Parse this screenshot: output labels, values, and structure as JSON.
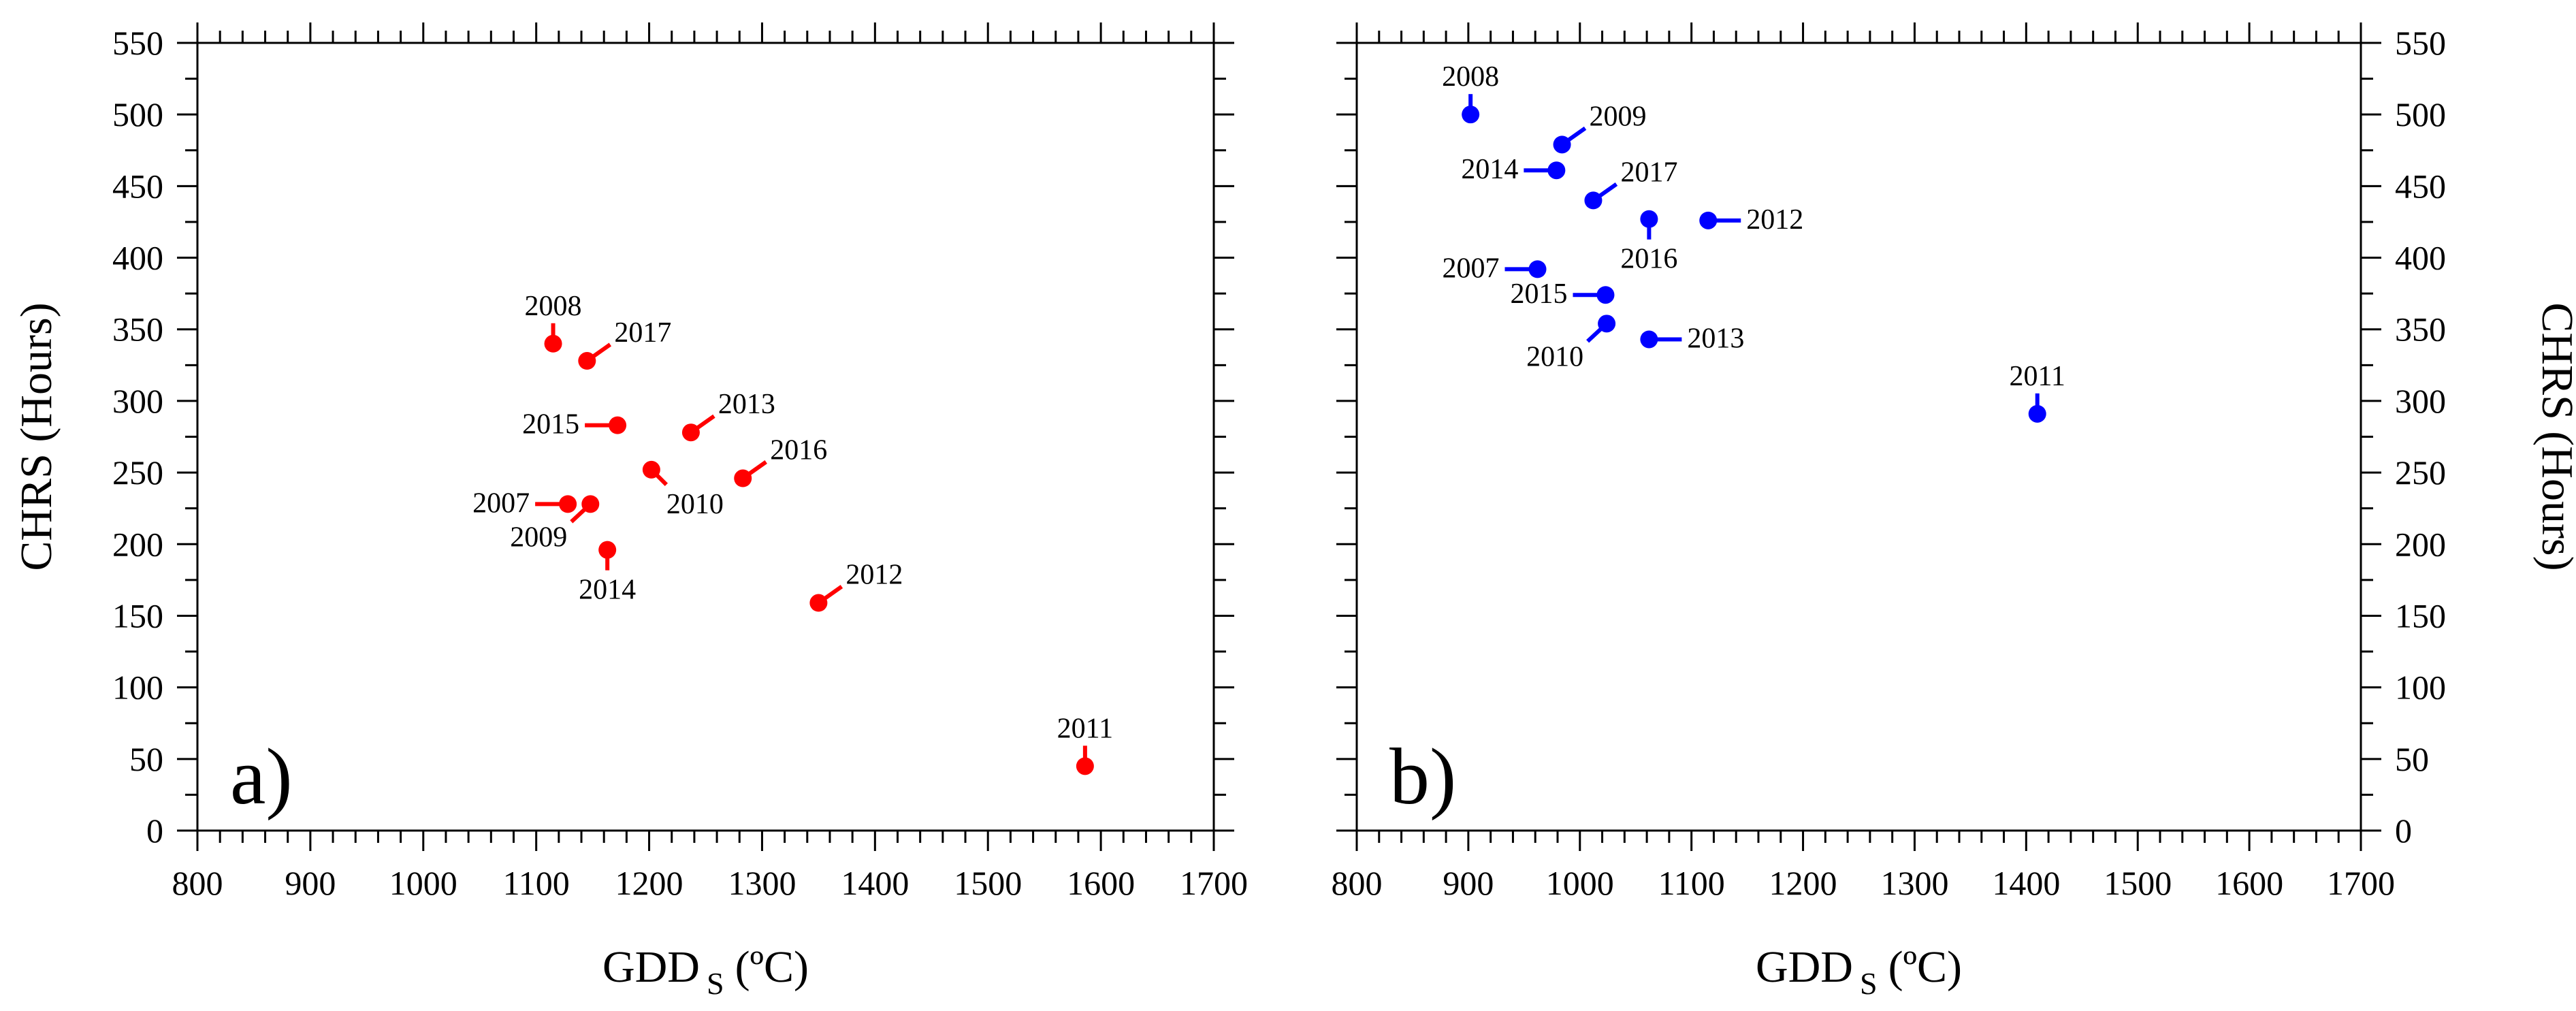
{
  "chart_data": [
    {
      "type": "scatter",
      "panel_label": "a)",
      "color": "#ff0000",
      "xlabel_main": "GDD",
      "xlabel_sub": "S",
      "xlabel_unit": "(ºC)",
      "ylabel": "CHRS (Hours)",
      "ylabel_side": "left",
      "xlim": [
        800,
        1700
      ],
      "ylim": [
        0,
        550
      ],
      "xticks": [
        800,
        900,
        1000,
        1100,
        1200,
        1300,
        1400,
        1500,
        1600,
        1700
      ],
      "yticks": [
        0,
        50,
        100,
        150,
        200,
        250,
        300,
        350,
        400,
        450,
        500,
        550
      ],
      "points": [
        {
          "year": "2007",
          "x": 1128,
          "y": 228,
          "label_pos": "left"
        },
        {
          "year": "2008",
          "x": 1115,
          "y": 340,
          "label_pos": "top"
        },
        {
          "year": "2009",
          "x": 1148,
          "y": 228,
          "label_pos": "bottom-left"
        },
        {
          "year": "2010",
          "x": 1202,
          "y": 252,
          "label_pos": "bottom-right"
        },
        {
          "year": "2011",
          "x": 1586,
          "y": 45,
          "label_pos": "top"
        },
        {
          "year": "2012",
          "x": 1350,
          "y": 159,
          "label_pos": "top-right"
        },
        {
          "year": "2013",
          "x": 1237,
          "y": 278,
          "label_pos": "top-right"
        },
        {
          "year": "2014",
          "x": 1163,
          "y": 196,
          "label_pos": "bottom"
        },
        {
          "year": "2015",
          "x": 1172,
          "y": 283,
          "label_pos": "left"
        },
        {
          "year": "2016",
          "x": 1283,
          "y": 246,
          "label_pos": "top-right"
        },
        {
          "year": "2017",
          "x": 1145,
          "y": 328,
          "label_pos": "top-right"
        }
      ]
    },
    {
      "type": "scatter",
      "panel_label": "b)",
      "color": "#0000ff",
      "xlabel_main": "GDD",
      "xlabel_sub": "S",
      "xlabel_unit": "(ºC)",
      "ylabel": "CHRS (Hours)",
      "ylabel_side": "right",
      "xlim": [
        800,
        1700
      ],
      "ylim": [
        0,
        550
      ],
      "xticks": [
        800,
        900,
        1000,
        1100,
        1200,
        1300,
        1400,
        1500,
        1600,
        1700
      ],
      "yticks": [
        0,
        50,
        100,
        150,
        200,
        250,
        300,
        350,
        400,
        450,
        500,
        550
      ],
      "points": [
        {
          "year": "2007",
          "x": 962,
          "y": 392,
          "label_pos": "left"
        },
        {
          "year": "2008",
          "x": 902,
          "y": 500,
          "label_pos": "top"
        },
        {
          "year": "2009",
          "x": 984,
          "y": 479,
          "label_pos": "top-right"
        },
        {
          "year": "2010",
          "x": 1024,
          "y": 354,
          "label_pos": "bottom-left"
        },
        {
          "year": "2011",
          "x": 1410,
          "y": 291,
          "label_pos": "top"
        },
        {
          "year": "2012",
          "x": 1115,
          "y": 426,
          "label_pos": "right"
        },
        {
          "year": "2013",
          "x": 1062,
          "y": 343,
          "label_pos": "right"
        },
        {
          "year": "2014",
          "x": 979,
          "y": 461,
          "label_pos": "left"
        },
        {
          "year": "2015",
          "x": 1023,
          "y": 374,
          "label_pos": "left"
        },
        {
          "year": "2016",
          "x": 1062,
          "y": 427,
          "label_pos": "bottom"
        },
        {
          "year": "2017",
          "x": 1012,
          "y": 440,
          "label_pos": "top-right"
        }
      ]
    }
  ]
}
